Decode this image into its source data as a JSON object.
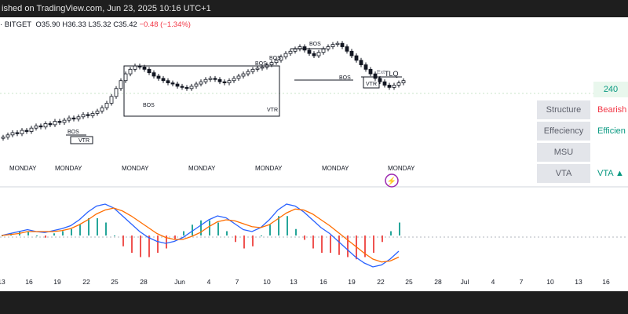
{
  "header": {
    "text": "ished on TradingView.com, Jun 23, 2025 10:16 UTC+1"
  },
  "ohlc": {
    "symbol": "· BITGET",
    "o": "O35.90",
    "h": "H36.33",
    "l": "L35.32",
    "c": "C35.42",
    "chg": "−0.48 (−1.34%)"
  },
  "price_tag": "240",
  "table": [
    {
      "label": "Structure",
      "value": "Bearish",
      "color": "#f23645"
    },
    {
      "label": "Effeciency",
      "value": "Efficien",
      "color": "#089981"
    },
    {
      "label": "MSU",
      "value": "",
      "color": "#089981"
    },
    {
      "label": "VTA",
      "value": "VTA ▲",
      "color": "#089981"
    }
  ],
  "colors": {
    "up": "#089981",
    "down": "#f23645",
    "macd": "#2962ff",
    "signal": "#ff6d00",
    "hist_up": "#26a69a",
    "hist_down": "#ef5350"
  },
  "chart_data": [
    {
      "type": "candlestick",
      "title": "",
      "annotations": [
        "BOS",
        "BOS",
        "BOS",
        "BOS",
        "BOS",
        "BOS",
        "VTR",
        "VTR",
        "VTR",
        "TLQ",
        "Ext"
      ],
      "session_label": "MONDAY",
      "x_ticks": [
        "13",
        "16",
        "19",
        "22",
        "25",
        "28",
        "Jun",
        "4",
        "7",
        "10",
        "13",
        "16",
        "19",
        "22",
        "25",
        "28",
        "Jul",
        "4",
        "7",
        "10",
        "13",
        "16"
      ],
      "close": [
        12,
        14,
        16,
        15,
        18,
        17,
        20,
        22,
        21,
        24,
        23,
        26,
        25,
        27,
        29,
        28,
        30,
        32,
        31,
        33,
        35,
        38,
        42,
        48,
        55,
        62,
        68,
        72,
        75,
        74,
        72,
        69,
        66,
        64,
        62,
        60,
        59,
        57,
        56,
        55,
        57,
        59,
        61,
        63,
        64,
        63,
        61,
        60,
        62,
        64,
        66,
        68,
        70,
        72,
        73,
        74,
        76,
        78,
        80,
        83,
        86,
        88,
        90,
        92,
        89,
        86,
        84,
        87,
        90,
        92,
        94,
        95,
        92,
        88,
        84,
        80,
        76,
        72,
        68,
        64,
        61,
        58,
        56,
        58,
        60,
        62
      ],
      "ylim": [
        0,
        100
      ]
    },
    {
      "type": "line",
      "title": "",
      "series": [
        {
          "values": [
            0,
            0.2,
            0.4,
            0.6,
            0.4,
            0.3,
            0.5,
            0.7,
            1.0,
            1.6,
            2.4,
            3.0,
            3.2,
            2.8,
            2.0,
            1.2,
            0.4,
            -0.2,
            -0.6,
            -0.8,
            -0.6,
            -0.2,
            0.4,
            1.0,
            1.6,
            2.0,
            1.8,
            1.2,
            0.6,
            0.4,
            0.8,
            1.6,
            2.6,
            3.2,
            3.0,
            2.4,
            1.6,
            0.8,
            0.2,
            -0.6,
            -1.4,
            -2.2,
            -2.8,
            -3.2,
            -3.0,
            -2.4,
            -1.6
          ]
        },
        {
          "values": [
            0,
            0.1,
            0.2,
            0.4,
            0.4,
            0.4,
            0.4,
            0.5,
            0.7,
            1.1,
            1.6,
            2.2,
            2.6,
            2.8,
            2.5,
            2.0,
            1.4,
            0.8,
            0.2,
            -0.2,
            -0.4,
            -0.4,
            -0.1,
            0.3,
            0.9,
            1.4,
            1.6,
            1.5,
            1.2,
            0.9,
            0.8,
            1.1,
            1.7,
            2.3,
            2.7,
            2.6,
            2.2,
            1.6,
            1.0,
            0.3,
            -0.4,
            -1.1,
            -1.8,
            -2.4,
            -2.7,
            -2.6,
            -2.2
          ]
        }
      ],
      "ylim": [
        -4,
        4
      ]
    }
  ]
}
